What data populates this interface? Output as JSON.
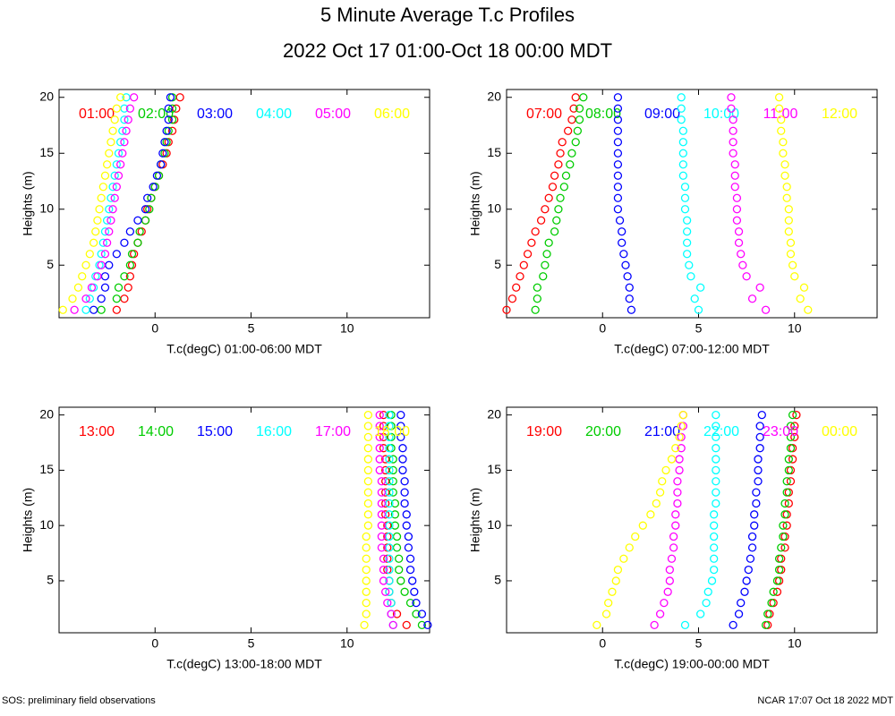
{
  "title": "5 Minute Average T.c Profiles",
  "subtitle": "2022 Oct 17 01:00-Oct 18 00:00 MDT",
  "footer_left": "SOS: preliminary field observations",
  "footer_right": "NCAR 17:07 Oct 18 2022 MDT",
  "chart_data": [
    {
      "type": "scatter",
      "x_label": "T.c(degC) 01:00-06:00 MDT",
      "y_label": "Heights (m)",
      "xlim": [
        -5,
        14.3
      ],
      "ylim": [
        0.3,
        20.7
      ],
      "xticks": [
        0,
        5,
        10
      ],
      "yticks": [
        5,
        10,
        15,
        20
      ],
      "y": [
        1,
        2,
        3,
        4,
        5,
        6,
        7,
        8,
        9,
        10,
        11,
        12,
        13,
        14,
        15,
        16,
        17,
        18,
        19,
        20
      ],
      "series": [
        {
          "name": "01:00",
          "color": "#ff0000",
          "x": [
            -2.0,
            -1.6,
            -1.4,
            -1.3,
            -1.2,
            -1.1,
            -0.9,
            -0.7,
            -0.5,
            -0.4,
            -0.2,
            0.0,
            0.2,
            0.4,
            0.6,
            0.7,
            0.9,
            1.0,
            1.1,
            1.3
          ]
        },
        {
          "name": "02:00",
          "color": "#00cc00",
          "x": [
            -2.8,
            -2.0,
            -1.9,
            -1.6,
            -1.3,
            -1.2,
            -0.9,
            -0.8,
            -0.5,
            -0.3,
            -0.2,
            0.0,
            0.2,
            0.3,
            0.5,
            0.6,
            0.7,
            0.9,
            0.9,
            0.9
          ]
        },
        {
          "name": "03:00",
          "color": "#0000ff",
          "x": [
            -3.2,
            -2.8,
            -2.6,
            -2.6,
            -2.4,
            -2.0,
            -1.6,
            -1.3,
            -0.9,
            -0.5,
            -0.4,
            -0.1,
            0.1,
            0.3,
            0.4,
            0.5,
            0.6,
            0.7,
            0.7,
            0.8
          ]
        },
        {
          "name": "04:00",
          "color": "#00ffff",
          "x": [
            -3.6,
            -3.4,
            -3.2,
            -3.1,
            -2.9,
            -2.8,
            -2.7,
            -2.6,
            -2.5,
            -2.4,
            -2.3,
            -2.2,
            -2.1,
            -2.0,
            -1.9,
            -1.8,
            -1.7,
            -1.6,
            -1.6,
            -1.5
          ]
        },
        {
          "name": "05:00",
          "color": "#ff00ff",
          "x": [
            -4.2,
            -3.6,
            -3.3,
            -3.0,
            -2.8,
            -2.6,
            -2.5,
            -2.4,
            -2.3,
            -2.2,
            -2.1,
            -2.0,
            -1.9,
            -1.8,
            -1.7,
            -1.6,
            -1.5,
            -1.4,
            -1.3,
            -1.1
          ]
        },
        {
          "name": "06:00",
          "color": "#ffff00",
          "x": [
            -4.8,
            -4.3,
            -4.0,
            -3.8,
            -3.6,
            -3.4,
            -3.2,
            -3.1,
            -3.0,
            -2.9,
            -2.8,
            -2.7,
            -2.6,
            -2.5,
            -2.4,
            -2.3,
            -2.2,
            -2.1,
            -2.0,
            -1.8
          ]
        }
      ]
    },
    {
      "type": "scatter",
      "x_label": "T.c(degC) 07:00-12:00 MDT",
      "y_label": "Heights (m)",
      "xlim": [
        -5,
        14.3
      ],
      "ylim": [
        0.3,
        20.7
      ],
      "xticks": [
        0,
        5,
        10
      ],
      "yticks": [
        5,
        10,
        15,
        20
      ],
      "y": [
        1,
        2,
        3,
        4,
        5,
        6,
        7,
        8,
        9,
        10,
        11,
        12,
        13,
        14,
        15,
        16,
        17,
        18,
        19,
        20
      ],
      "series": [
        {
          "name": "07:00",
          "color": "#ff0000",
          "x": [
            -5.0,
            -4.7,
            -4.5,
            -4.3,
            -4.1,
            -3.9,
            -3.7,
            -3.5,
            -3.2,
            -3.0,
            -2.8,
            -2.6,
            -2.5,
            -2.3,
            -2.2,
            -2.1,
            -1.8,
            -1.6,
            -1.5,
            -1.4
          ]
        },
        {
          "name": "08:00",
          "color": "#00cc00",
          "x": [
            -3.5,
            -3.4,
            -3.4,
            -3.1,
            -3.0,
            -2.9,
            -2.8,
            -2.5,
            -2.4,
            -2.3,
            -2.2,
            -2.0,
            -1.9,
            -1.7,
            -1.6,
            -1.4,
            -1.3,
            -1.2,
            -1.2,
            -1.0
          ]
        },
        {
          "name": "09:00",
          "color": "#0000ff",
          "x": [
            1.5,
            1.4,
            1.4,
            1.3,
            1.2,
            1.1,
            1.0,
            1.0,
            0.9,
            0.8,
            0.8,
            0.8,
            0.8,
            0.8,
            0.8,
            0.8,
            0.8,
            0.8,
            0.8,
            0.8
          ]
        },
        {
          "name": "10:00",
          "color": "#00ffff",
          "x": [
            5.0,
            4.8,
            5.1,
            4.6,
            4.5,
            4.4,
            4.4,
            4.4,
            4.4,
            4.3,
            4.3,
            4.3,
            4.2,
            4.2,
            4.2,
            4.2,
            4.2,
            4.1,
            4.1,
            4.1
          ]
        },
        {
          "name": "11:00",
          "color": "#ff00ff",
          "x": [
            8.5,
            7.8,
            8.2,
            7.5,
            7.3,
            7.2,
            7.1,
            7.1,
            7.0,
            7.0,
            7.0,
            6.9,
            6.9,
            6.9,
            6.8,
            6.8,
            6.8,
            6.8,
            6.7,
            6.7
          ]
        },
        {
          "name": "12:00",
          "color": "#ffff00",
          "x": [
            10.7,
            10.3,
            10.5,
            10.0,
            9.9,
            9.8,
            9.8,
            9.7,
            9.7,
            9.7,
            9.6,
            9.6,
            9.5,
            9.5,
            9.4,
            9.4,
            9.3,
            9.3,
            9.2,
            9.2
          ]
        }
      ]
    },
    {
      "type": "scatter",
      "x_label": "T.c(degC) 13:00-18:00 MDT",
      "y_label": "Heights (m)",
      "xlim": [
        -5,
        14.3
      ],
      "ylim": [
        0.3,
        20.7
      ],
      "xticks": [
        0,
        5,
        10
      ],
      "yticks": [
        5,
        10,
        15,
        20
      ],
      "y": [
        1,
        2,
        3,
        4,
        5,
        6,
        7,
        8,
        9,
        10,
        11,
        12,
        13,
        14,
        15,
        16,
        17,
        18,
        19,
        20
      ],
      "series": [
        {
          "name": "13:00",
          "color": "#ff0000",
          "x": [
            13.1,
            12.6,
            12.3,
            12.2,
            12.2,
            12.1,
            12.1,
            12.1,
            12.1,
            12.1,
            12.0,
            12.0,
            12.0,
            12.0,
            12.0,
            12.0,
            11.9,
            11.9,
            11.9,
            11.9
          ]
        },
        {
          "name": "14:00",
          "color": "#00cc00",
          "x": [
            13.9,
            13.6,
            13.3,
            13.0,
            12.8,
            12.7,
            12.7,
            12.6,
            12.6,
            12.5,
            12.5,
            12.5,
            12.4,
            12.4,
            12.4,
            12.4,
            12.3,
            12.3,
            12.3,
            12.3
          ]
        },
        {
          "name": "15:00",
          "color": "#0000ff",
          "x": [
            14.2,
            13.9,
            13.6,
            13.5,
            13.4,
            13.3,
            13.3,
            13.2,
            13.2,
            13.1,
            13.1,
            13.0,
            13.0,
            13.0,
            12.9,
            12.9,
            12.9,
            12.8,
            12.8,
            12.8
          ]
        },
        {
          "name": "16:00",
          "color": "#00ffff",
          "x": [
            12.4,
            12.3,
            12.3,
            12.2,
            12.2,
            12.2,
            12.2,
            12.2,
            12.2,
            12.2,
            12.2,
            12.2,
            12.2,
            12.2,
            12.2,
            12.2,
            12.2,
            12.2,
            12.2,
            12.2
          ]
        },
        {
          "name": "17:00",
          "color": "#ff00ff",
          "x": [
            12.4,
            12.3,
            12.1,
            12.0,
            11.9,
            11.9,
            11.9,
            11.8,
            11.8,
            11.8,
            11.8,
            11.8,
            11.8,
            11.8,
            11.7,
            11.7,
            11.7,
            11.7,
            11.7,
            11.7
          ]
        },
        {
          "name": "18:00",
          "color": "#ffff00",
          "x": [
            10.9,
            11.0,
            11.0,
            11.0,
            11.0,
            11.0,
            11.0,
            11.0,
            11.0,
            11.1,
            11.1,
            11.1,
            11.1,
            11.1,
            11.1,
            11.1,
            11.1,
            11.1,
            11.1,
            11.1
          ]
        }
      ]
    },
    {
      "type": "scatter",
      "x_label": "T.c(degC) 19:00-00:00 MDT",
      "y_label": "Heights (m)",
      "xlim": [
        -5,
        14.3
      ],
      "ylim": [
        0.3,
        20.7
      ],
      "xticks": [
        0,
        5,
        10
      ],
      "yticks": [
        5,
        10,
        15,
        20
      ],
      "y": [
        1,
        2,
        3,
        4,
        5,
        6,
        7,
        8,
        9,
        10,
        11,
        12,
        13,
        14,
        15,
        16,
        17,
        18,
        19,
        20
      ],
      "series": [
        {
          "name": "19:00",
          "color": "#ff0000",
          "x": [
            8.6,
            8.7,
            8.9,
            9.1,
            9.2,
            9.3,
            9.3,
            9.5,
            9.5,
            9.6,
            9.6,
            9.7,
            9.7,
            9.8,
            9.8,
            9.9,
            9.9,
            10.0,
            10.0,
            10.1
          ]
        },
        {
          "name": "20:00",
          "color": "#00cc00",
          "x": [
            8.5,
            8.6,
            8.8,
            8.9,
            9.1,
            9.2,
            9.2,
            9.3,
            9.4,
            9.4,
            9.5,
            9.5,
            9.6,
            9.6,
            9.7,
            9.7,
            9.8,
            9.8,
            9.8,
            9.9
          ]
        },
        {
          "name": "21:00",
          "color": "#0000ff",
          "x": [
            6.8,
            7.1,
            7.2,
            7.4,
            7.5,
            7.6,
            7.7,
            7.8,
            7.8,
            7.9,
            7.9,
            8.0,
            8.0,
            8.1,
            8.1,
            8.1,
            8.2,
            8.2,
            8.2,
            8.3
          ]
        },
        {
          "name": "22:00",
          "color": "#00ffff",
          "x": [
            4.3,
            5.1,
            5.4,
            5.5,
            5.7,
            5.8,
            5.8,
            5.8,
            5.8,
            5.8,
            5.8,
            5.9,
            5.9,
            5.9,
            5.9,
            5.9,
            5.9,
            5.9,
            5.9,
            5.9
          ]
        },
        {
          "name": "23:00",
          "color": "#ff00ff",
          "x": [
            2.7,
            3.0,
            3.2,
            3.4,
            3.5,
            3.5,
            3.6,
            3.7,
            3.7,
            3.8,
            3.8,
            3.9,
            3.9,
            3.9,
            4.0,
            4.0,
            4.1,
            4.1,
            4.2,
            4.2
          ]
        },
        {
          "name": "00:00",
          "color": "#ffff00",
          "x": [
            -0.3,
            0.2,
            0.3,
            0.5,
            0.7,
            0.8,
            1.1,
            1.4,
            1.7,
            2.1,
            2.5,
            2.8,
            3.0,
            3.1,
            3.3,
            3.6,
            3.8,
            4.0,
            4.1,
            4.2
          ]
        }
      ]
    }
  ]
}
